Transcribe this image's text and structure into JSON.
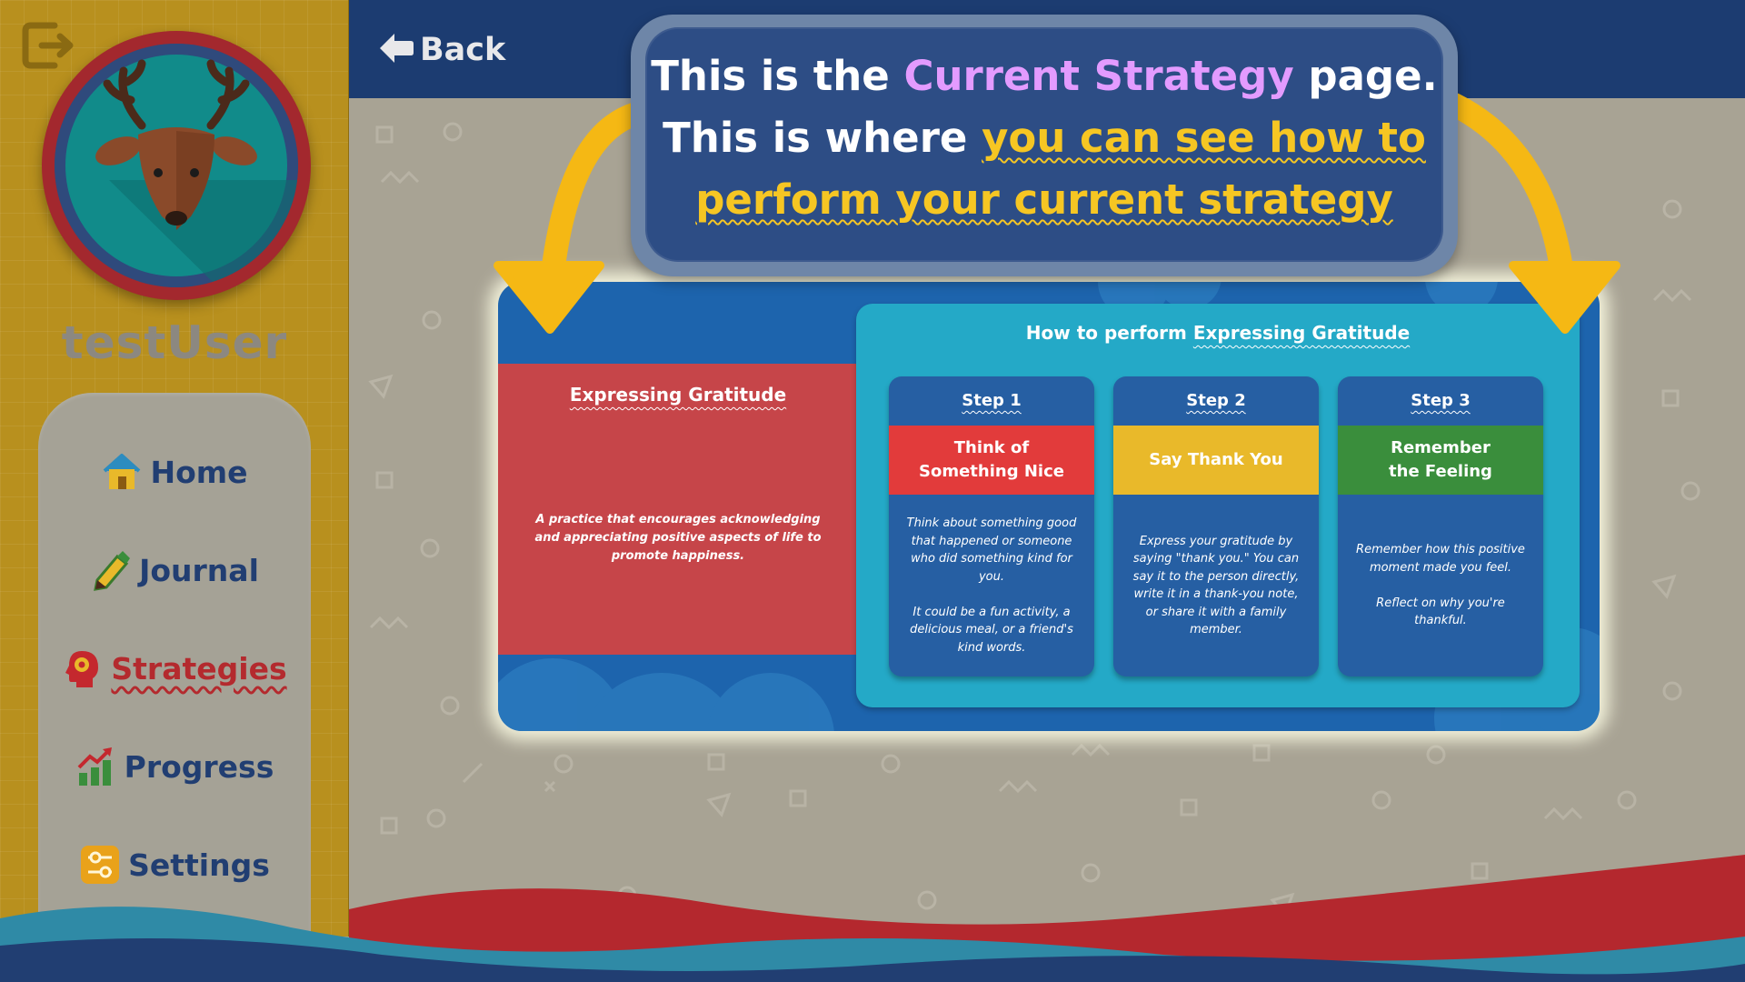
{
  "app": {
    "user": {
      "name": "testUser",
      "avatar_icon": "deer-avatar"
    },
    "logout_icon": "logout-icon"
  },
  "sidebar": {
    "items": [
      {
        "label": "Home",
        "icon": "house-icon",
        "active": false
      },
      {
        "label": "Journal",
        "icon": "pencil-icon",
        "active": false
      },
      {
        "label": "Strategies",
        "icon": "head-gear-icon",
        "active": true
      },
      {
        "label": "Progress",
        "icon": "bar-chart-icon",
        "active": false
      },
      {
        "label": "Settings",
        "icon": "sliders-icon",
        "active": false
      }
    ]
  },
  "header": {
    "back_label": "Back",
    "back_icon": "arrow-left-icon"
  },
  "callout": {
    "line1_a": "This is the ",
    "line1_highlight": "Current Strategy",
    "line1_b": " page.",
    "line2_a": "This is where ",
    "line2_highlight": "you can see how to",
    "line3_highlight": "perform your current strategy"
  },
  "strategy": {
    "title": "Expressing Gratitude",
    "description": "A practice that encourages acknowledging and appreciating positive aspects of life to promote happiness.",
    "howto_prefix": "How to perform ",
    "howto_name": "Expressing Gratitude",
    "steps": [
      {
        "label": "Step 1",
        "name": "Think of\nSomething Nice",
        "color": "#e23b3b",
        "text": "Think about something good that happened or someone who did something kind for you.\n\nIt could be a fun activity, a delicious meal, or a friend's kind words."
      },
      {
        "label": "Step 2",
        "name": "Say Thank You",
        "color": "#e9b92a",
        "text": "Express your gratitude by saying \"thank you.\" You can say it to the person directly, write it in a thank-you note, or share it with a family member."
      },
      {
        "label": "Step 3",
        "name": "Remember\nthe Feeling",
        "color": "#3a8e3c",
        "text": "Remember how this positive moment made you feel.\n\nReflect on why you're thankful."
      }
    ]
  },
  "colors": {
    "sidebar": "#b8901e",
    "topbar": "#1c3c71",
    "accent_red": "#b42a2e",
    "nav_text": "#213e72",
    "highlight_yellow": "#f6c623",
    "highlight_purple": "#e39bff"
  }
}
